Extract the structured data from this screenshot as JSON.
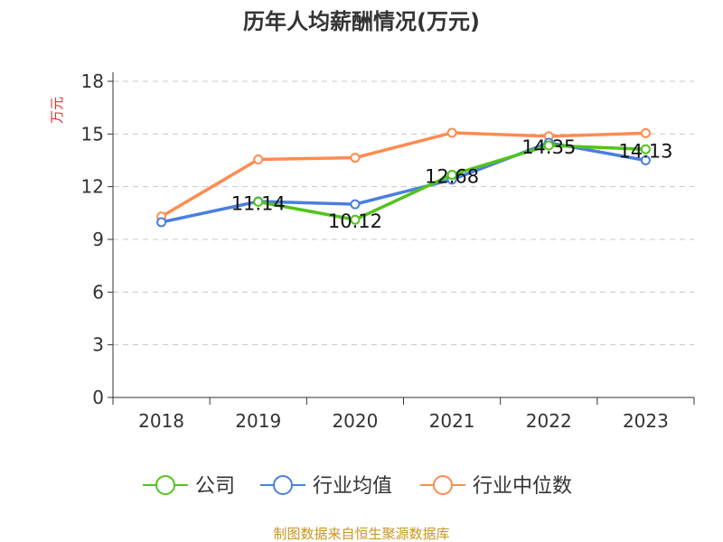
{
  "chart_data": {
    "type": "line",
    "title": "历年人均薪酬情况(万元)",
    "ylabel": "万元",
    "xlabel": "",
    "categories": [
      "2018",
      "2019",
      "2020",
      "2021",
      "2022",
      "2023"
    ],
    "ylim": [
      0,
      18
    ],
    "yticks": [
      "0",
      "3",
      "6",
      "9",
      "12",
      "15",
      "18"
    ],
    "grid": true,
    "legend_placement": "bottom",
    "series": [
      {
        "name": "公司",
        "color": "#52c41a",
        "values": [
          null,
          11.14,
          10.12,
          12.68,
          14.35,
          14.13
        ],
        "labels": [
          "",
          "11.14",
          "10.12",
          "12.68",
          "14.35",
          "14.13"
        ]
      },
      {
        "name": "行业均值",
        "color": "#4a7fe0",
        "values": [
          9.98,
          11.16,
          11.0,
          12.4,
          14.5,
          13.5
        ]
      },
      {
        "name": "行业中位数",
        "color": "#ff8c50",
        "values": [
          10.3,
          13.55,
          13.65,
          15.07,
          14.87,
          15.05
        ]
      }
    ]
  },
  "footer": "制图数据来自恒生聚源数据库"
}
